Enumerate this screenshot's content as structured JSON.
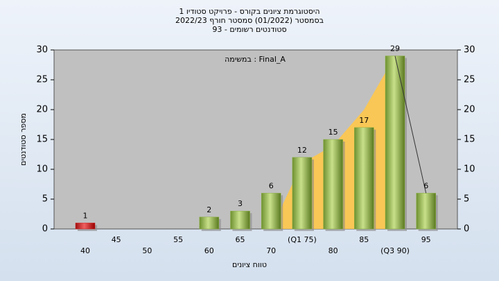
{
  "chart_data": {
    "type": "bar",
    "title": [
      "היסטוגרמת ציונים בקורס - פרויקט סטודיו 1",
      "בסמסטר  (01/2022)  סמסטר חורף 2022/23",
      "סטודנטים רשומים - 93"
    ],
    "annotation": "במשימה : Final_A",
    "x_label": "טווח ציונים",
    "y_label": "מספר סטודנטים",
    "categories": [
      "40",
      "45",
      "50",
      "55",
      "60",
      "65",
      "70",
      "(Q1 75)",
      "80",
      "85",
      "(Q3 90)",
      "95"
    ],
    "values": [
      1,
      null,
      null,
      null,
      2,
      3,
      6,
      12,
      15,
      17,
      29,
      6
    ],
    "colors": [
      "#d02020",
      "#8ab040",
      "#8ab040",
      "#8ab040",
      "#8ab040",
      "#8ab040",
      "#8ab040",
      "#8ab040",
      "#8ab040",
      "#8ab040",
      "#8ab040",
      "#8ab040"
    ],
    "area": {
      "color": "#ffc84a",
      "values": [
        null,
        null,
        null,
        null,
        null,
        null,
        0,
        11,
        14,
        20,
        29,
        null
      ]
    },
    "line": {
      "color": "#333333",
      "values": [
        null,
        null,
        null,
        null,
        null,
        null,
        null,
        null,
        null,
        null,
        29,
        6
      ]
    },
    "ylim": [
      0,
      30
    ],
    "yticks": [
      0,
      5,
      10,
      15,
      20,
      25,
      30
    ],
    "y2lim": [
      0,
      30
    ],
    "y2ticks": [
      0,
      5,
      10,
      15,
      20,
      25,
      30
    ]
  }
}
